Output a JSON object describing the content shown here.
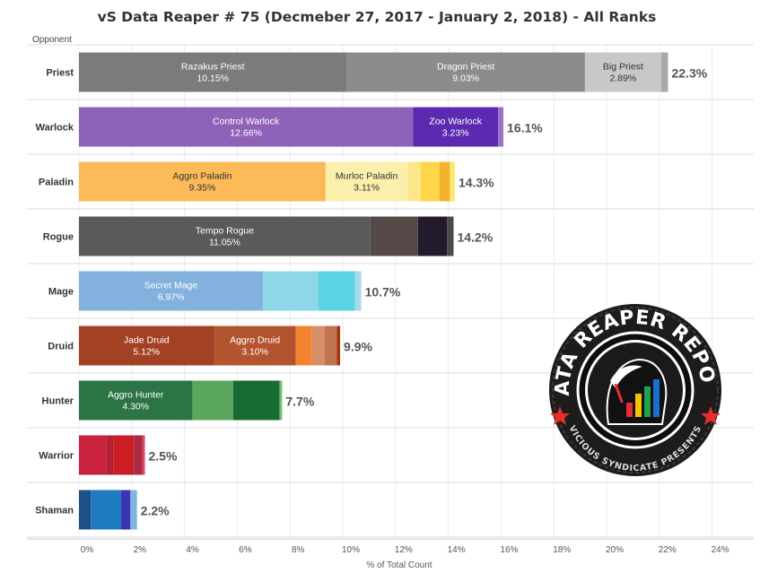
{
  "chart_data": {
    "type": "bar",
    "orientation": "horizontal",
    "stacked": true,
    "title": "vS Data Reaper # 75 (Decmeber  27, 2017 - January 2, 2018) - All Ranks",
    "row_header": "Opponent",
    "xlabel": "% of Total Count",
    "xlim": [
      0,
      24
    ],
    "xticks": [
      0,
      2,
      4,
      6,
      8,
      10,
      12,
      14,
      16,
      18,
      20,
      22,
      24
    ],
    "xtick_labels": [
      "0%",
      "2%",
      "4%",
      "6%",
      "8%",
      "10%",
      "12%",
      "14%",
      "16%",
      "18%",
      "20%",
      "22%",
      "24%"
    ],
    "categories": [
      "Priest",
      "Warlock",
      "Paladin",
      "Rogue",
      "Mage",
      "Druid",
      "Hunter",
      "Warrior",
      "Shaman"
    ],
    "totals": [
      "22.3%",
      "16.1%",
      "14.3%",
      "14.2%",
      "10.7%",
      "9.9%",
      "7.7%",
      "2.5%",
      "2.2%"
    ],
    "rows": [
      {
        "class": "Priest",
        "segments": [
          {
            "name": "Razakus Priest",
            "label": "10.15%",
            "value": 10.15,
            "color": "#7b7b7b"
          },
          {
            "name": "Dragon Priest",
            "label": "9.03%",
            "value": 9.03,
            "color": "#8c8c8c"
          },
          {
            "name": "Big Priest",
            "label": "2.89%",
            "value": 2.89,
            "color": "#c8c8c8"
          },
          {
            "value": 0.26,
            "color": "#a9a9a9"
          }
        ]
      },
      {
        "class": "Warlock",
        "segments": [
          {
            "name": "Control Warlock",
            "label": "12.66%",
            "value": 12.66,
            "color": "#8f62ba"
          },
          {
            "name": "Zoo Warlock",
            "label": "3.23%",
            "value": 3.23,
            "color": "#5b2ab0"
          },
          {
            "value": 0.2,
            "color": "#9a70c8"
          }
        ]
      },
      {
        "class": "Paladin",
        "segments": [
          {
            "name": "Aggro Paladin",
            "label": "9.35%",
            "value": 9.35,
            "color": "#fdba58"
          },
          {
            "name": "Murloc Paladin",
            "label": "3.11%",
            "value": 3.11,
            "color": "#fbefac"
          },
          {
            "value": 0.5,
            "color": "#fde68a"
          },
          {
            "value": 0.7,
            "color": "#fed64a"
          },
          {
            "value": 0.4,
            "color": "#f4b32a"
          },
          {
            "value": 0.19,
            "color": "#f8ea6e"
          }
        ]
      },
      {
        "class": "Rogue",
        "segments": [
          {
            "name": "Tempo Rogue",
            "label": "11.05%",
            "value": 11.05,
            "color": "#5a5a5a"
          },
          {
            "value": 1.8,
            "color": "#574848"
          },
          {
            "value": 1.1,
            "color": "#241a2e"
          },
          {
            "value": 0.25,
            "color": "#4a4a4a"
          }
        ]
      },
      {
        "class": "Mage",
        "segments": [
          {
            "name": "Secret Mage",
            "label": "6.97%",
            "value": 6.97,
            "color": "#82b1de"
          },
          {
            "value": 2.1,
            "color": "#8fd7e8"
          },
          {
            "value": 1.4,
            "color": "#5bd3e5"
          },
          {
            "value": 0.23,
            "color": "#a8d8ec"
          }
        ]
      },
      {
        "class": "Druid",
        "segments": [
          {
            "name": "Jade Druid",
            "label": "5.12%",
            "value": 5.12,
            "color": "#a34124"
          },
          {
            "name": "Aggro Druid",
            "label": "3.10%",
            "value": 3.1,
            "color": "#b3542f"
          },
          {
            "value": 0.6,
            "color": "#f5822e"
          },
          {
            "value": 0.5,
            "color": "#d68f66"
          },
          {
            "value": 0.45,
            "color": "#c0734e"
          },
          {
            "value": 0.13,
            "color": "#a3360f"
          }
        ]
      },
      {
        "class": "Hunter",
        "segments": [
          {
            "name": "Aggro Hunter",
            "label": "4.30%",
            "value": 4.3,
            "color": "#2b7444"
          },
          {
            "value": 1.55,
            "color": "#5aa65c"
          },
          {
            "value": 1.75,
            "color": "#196b34"
          },
          {
            "value": 0.1,
            "color": "#6fbf6f"
          }
        ]
      },
      {
        "class": "Warrior",
        "segments": [
          {
            "value": 1.05,
            "color": "#c9223f"
          },
          {
            "value": 0.25,
            "color": "#b22034"
          },
          {
            "value": 0.8,
            "color": "#cb1e24"
          },
          {
            "value": 0.3,
            "color": "#a82a45"
          },
          {
            "value": 0.1,
            "color": "#e0445e"
          }
        ]
      },
      {
        "class": "Shaman",
        "segments": [
          {
            "value": 0.45,
            "color": "#1f4f8a"
          },
          {
            "value": 1.15,
            "color": "#1f7bbd"
          },
          {
            "value": 0.35,
            "color": "#3b35b5"
          },
          {
            "value": 0.25,
            "color": "#7eb8dc"
          }
        ]
      }
    ],
    "logo": {
      "text_top": "DATA REAPER REPORT",
      "text_bottom": "VICIOUS SYNDICATE PRESENTS",
      "colors": {
        "bg": "#1a1a1a",
        "red": "#e52e2e",
        "blue": "#1a6fd1",
        "green": "#22a34a",
        "yellow": "#f5c400"
      }
    }
  }
}
